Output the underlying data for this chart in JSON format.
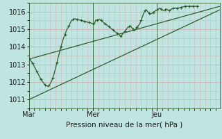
{
  "title": "Pression niveau de la mer( hPa )",
  "bg_color": "#c0e4e0",
  "plot_bg_color": "#c0e4e0",
  "grid_major_color": "#c8a8a8",
  "grid_minor_color": "#d0b8b8",
  "line_color": "#2d5e2d",
  "ylim": [
    1010.5,
    1016.5
  ],
  "yticks": [
    1011,
    1012,
    1013,
    1014,
    1015,
    1016
  ],
  "xtick_labels": [
    "Mar",
    "Mer",
    "Jeu"
  ],
  "xtick_positions": [
    0,
    48,
    96
  ],
  "total_points": 144,
  "forecast_line": [
    1013.3,
    1013.25,
    1013.15,
    1013.05,
    1012.9,
    1012.75,
    1012.6,
    1012.45,
    1012.3,
    1012.15,
    1012.05,
    1011.95,
    1011.85,
    1011.8,
    1011.75,
    1011.8,
    1011.9,
    1012.05,
    1012.25,
    1012.5,
    1012.8,
    1013.1,
    1013.4,
    1013.7,
    1014.0,
    1014.25,
    1014.5,
    1014.7,
    1014.9,
    1015.05,
    1015.2,
    1015.35,
    1015.5,
    1015.55,
    1015.6,
    1015.58,
    1015.56,
    1015.54,
    1015.52,
    1015.5,
    1015.48,
    1015.46,
    1015.44,
    1015.42,
    1015.4,
    1015.38,
    1015.36,
    1015.34,
    1015.3,
    1015.28,
    1015.5,
    1015.52,
    1015.54,
    1015.56,
    1015.5,
    1015.44,
    1015.38,
    1015.32,
    1015.26,
    1015.2,
    1015.14,
    1015.08,
    1015.02,
    1014.96,
    1014.9,
    1014.84,
    1014.78,
    1014.72,
    1014.66,
    1014.6,
    1014.7,
    1014.8,
    1014.9,
    1015.0,
    1015.1,
    1015.15,
    1015.2,
    1015.1,
    1015.0,
    1014.9,
    1015.0,
    1015.1,
    1015.2,
    1015.3,
    1015.5,
    1015.7,
    1015.9,
    1016.05,
    1016.1,
    1016.0,
    1015.9,
    1015.85,
    1015.9,
    1015.95,
    1016.0,
    1016.05,
    1016.1,
    1016.15,
    1016.2,
    1016.15,
    1016.1,
    1016.05,
    1016.1,
    1016.15,
    1016.1,
    1016.05,
    1016.1,
    1016.15,
    1016.2,
    1016.2,
    1016.2,
    1016.2,
    1016.2,
    1016.22,
    1016.24,
    1016.26,
    1016.28,
    1016.3,
    1016.3,
    1016.3,
    1016.3,
    1016.3,
    1016.3,
    1016.3,
    1016.3,
    1016.3,
    1016.3,
    1016.3
  ],
  "straight_line1_y": [
    1013.3,
    1016.3
  ],
  "straight_line2_y": [
    1011.0,
    1016.1
  ],
  "vline_x": [
    0,
    48,
    96
  ],
  "marker_interval": 3
}
